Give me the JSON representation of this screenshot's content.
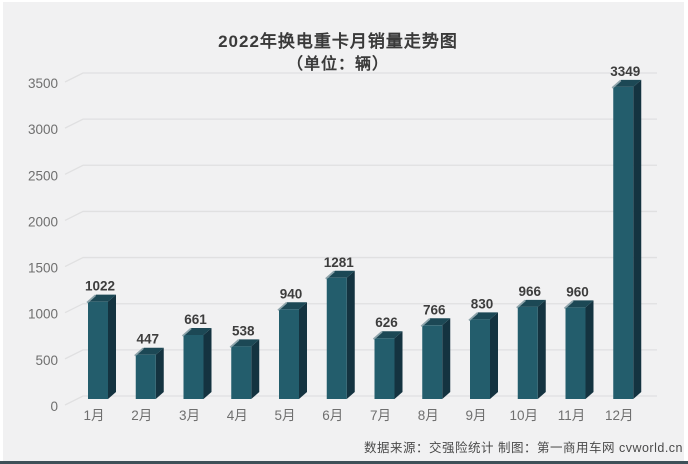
{
  "chart_data": {
    "type": "bar",
    "title": "2022年换电重卡月销量走势图",
    "subtitle": "（单位：辆）",
    "categories": [
      "1月",
      "2月",
      "3月",
      "4月",
      "5月",
      "6月",
      "7月",
      "8月",
      "9月",
      "10月",
      "11月",
      "12月"
    ],
    "values": [
      1022,
      447,
      661,
      538,
      940,
      1281,
      626,
      766,
      830,
      966,
      960,
      3349
    ],
    "xlabel": "",
    "ylabel": "",
    "ylim": [
      0,
      3500
    ],
    "yticks": [
      0,
      500,
      1000,
      1500,
      2000,
      2500,
      3000,
      3500
    ],
    "grid": true,
    "legend_position": "none",
    "style_3d": true,
    "colors": {
      "bar_front": "#235d6c",
      "bar_side": "#143340",
      "bar_top": "#1c4855",
      "bar_bevel": "#8ea4ab",
      "gridline": "#e0e0e1",
      "axis_label": "#6f6f6f",
      "value_label": "#3d3d3d",
      "panel_background": "#f1f1f2"
    }
  },
  "footer": {
    "source_text": "数据来源：交强险统计 制图：第一商用车网 cvworld.cn"
  }
}
